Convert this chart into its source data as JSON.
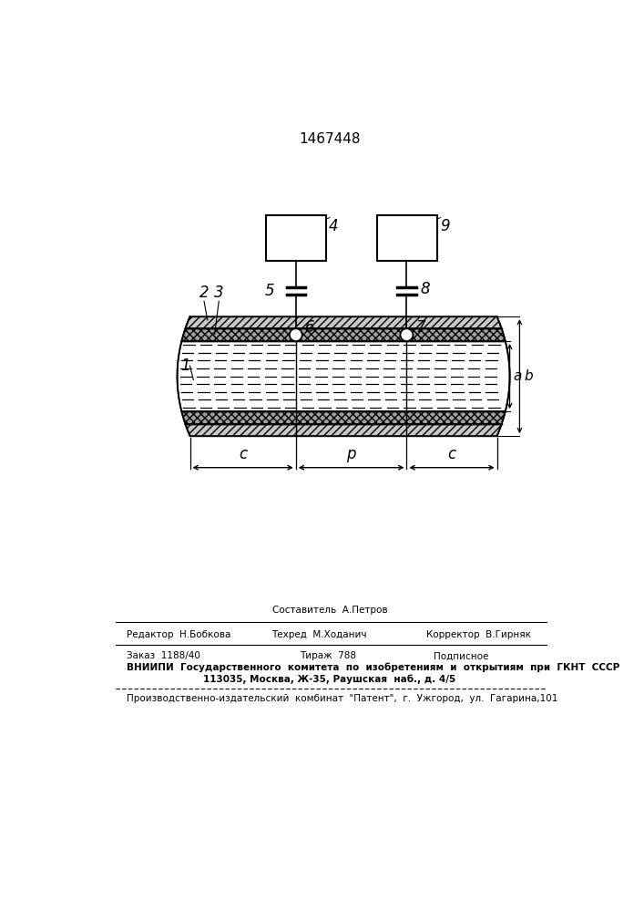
{
  "patent_number": "1467448",
  "bg_color": "#ffffff",
  "lc": "#000000",
  "footer_compositor": "Составитель  А.Петров",
  "footer_editor": "Редактор  Н.Бобкова",
  "footer_techred": "Техред  М.Ходанич",
  "footer_corrector": "Корректор  В.Гирняк",
  "footer_order": "Заказ  1188/40",
  "footer_tirazh": "Тираж  788",
  "footer_podpisnoe": "Подписное",
  "footer_vniiipi": "ВНИИПИ  Государственного  комитета  по  изобретениям  и  открытиям  при  ГКНТ  СССР",
  "footer_address": "113035, Москва, Ж-35, Раушская  наб., д. 4/5",
  "footer_patent_plant": "Производственно-издательский  комбинат  \"Патент\",  г.  Ужгород,  ул.  Гагарина,101"
}
